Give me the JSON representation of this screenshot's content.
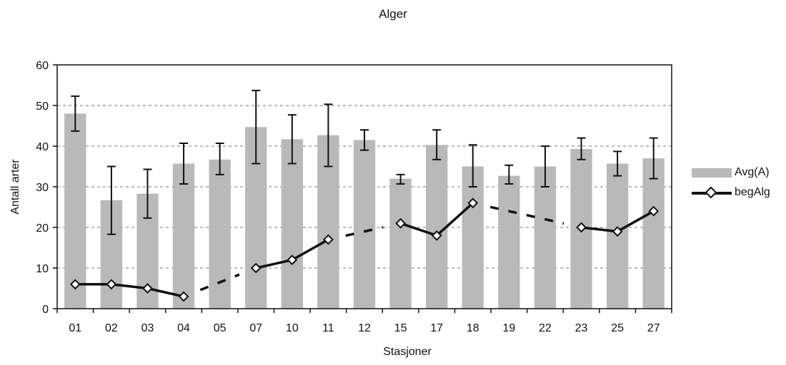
{
  "chart_data": {
    "type": "bar",
    "title": "Alger",
    "xlabel": "Stasjoner",
    "ylabel": "Antall arter",
    "ylim": [
      0,
      60
    ],
    "yticks": [
      0,
      10,
      20,
      30,
      40,
      50,
      60
    ],
    "grid": true,
    "legend_position": "right",
    "categories": [
      "01",
      "02",
      "03",
      "04",
      "05",
      "07",
      "10",
      "11",
      "12",
      "15",
      "17",
      "18",
      "19",
      "22",
      "23",
      "25",
      "27"
    ],
    "series": [
      {
        "name": "Avg(A)",
        "type": "bar",
        "color": "#b9b9b9",
        "values": [
          48,
          26.7,
          28.3,
          35.7,
          36.7,
          44.7,
          41.7,
          42.7,
          41.5,
          32,
          40.3,
          35,
          32.7,
          35,
          39.3,
          35.7,
          37
        ],
        "error_low": [
          43.7,
          18.3,
          22.3,
          30.7,
          33,
          35.7,
          35.7,
          35,
          39,
          30.7,
          36.7,
          30,
          30.7,
          30,
          36.7,
          32.7,
          32
        ],
        "error_high": [
          52.3,
          35,
          34.3,
          40.7,
          40.7,
          53.7,
          47.7,
          50.3,
          44,
          33,
          44,
          40.3,
          35.3,
          40,
          42,
          38.7,
          42
        ]
      },
      {
        "name": "begAlg",
        "type": "line",
        "color": "#111111",
        "values": [
          6,
          6,
          5,
          3,
          null,
          10,
          12,
          17,
          null,
          21,
          18,
          26,
          null,
          null,
          20,
          19,
          24
        ]
      }
    ]
  }
}
